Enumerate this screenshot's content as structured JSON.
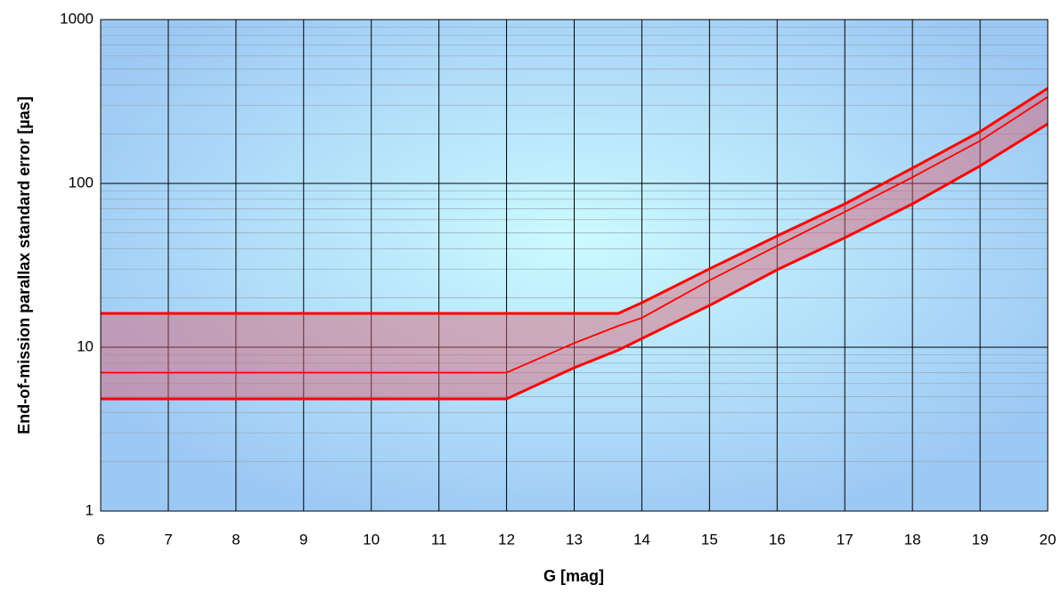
{
  "chart_data": {
    "type": "line",
    "x_label": "G [mag]",
    "y_label": "End-of-mission parallax standard error [µas]",
    "x": [
      6,
      12,
      13,
      13.65,
      14,
      15,
      16,
      17,
      18,
      19,
      20
    ],
    "series": [
      {
        "color": "#ff0000",
        "values": [
          16.1,
          16.1,
          16.1,
          16.1,
          18.7,
          30.1,
          47.8,
          75,
          124,
          207,
          381
        ]
      },
      {
        "color": "#ff0000",
        "values": [
          7.0,
          7.0,
          10.6,
          13.5,
          15.1,
          25.6,
          41.6,
          67,
          109,
          182,
          337
        ]
      },
      {
        "color": "#ff0000",
        "values": [
          4.84,
          4.84,
          7.5,
          9.6,
          11.3,
          18,
          29.7,
          46.6,
          75,
          128,
          231
        ]
      }
    ],
    "band_color": "#e05a6a",
    "xlim": [
      6,
      20
    ],
    "xticks": [
      6,
      7,
      8,
      9,
      10,
      11,
      12,
      13,
      14,
      15,
      16,
      17,
      18,
      19,
      20
    ],
    "ylim": [
      1,
      1000
    ],
    "yticks": [
      1,
      10,
      100,
      1000
    ],
    "log_y": true,
    "grid": true
  }
}
